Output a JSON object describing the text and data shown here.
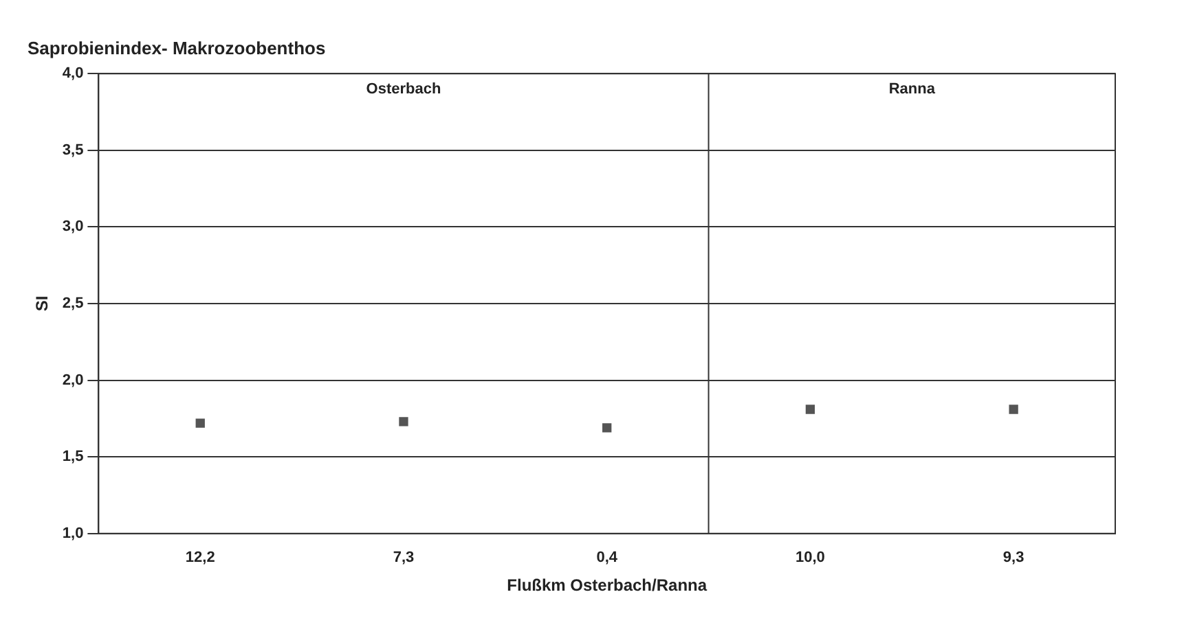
{
  "chart_data": {
    "type": "scatter",
    "title": "Saprobienindex- Makrozoobenthos",
    "xlabel": "Flußkm Osterbach/Ranna",
    "ylabel": "SI",
    "categories": [
      "12,2",
      "7,3",
      "0,4",
      "10,0",
      "9,3"
    ],
    "series": [
      {
        "color": "#555555",
        "values": [
          1.72,
          1.73,
          1.69,
          1.81,
          1.81
        ]
      }
    ],
    "ylim": [
      1,
      4
    ],
    "yticks": [
      {
        "value": 1,
        "label": "1,0"
      },
      {
        "value": 1.5,
        "label": "1,5"
      },
      {
        "value": 2,
        "label": "2,0"
      },
      {
        "value": 2.5,
        "label": "2,5"
      },
      {
        "value": 3,
        "label": "3,0"
      },
      {
        "value": 3.5,
        "label": "3,5"
      },
      {
        "value": 4,
        "label": "4,0"
      }
    ],
    "annotations": [
      "Osterbach",
      "Ranna"
    ],
    "grid": "y",
    "marker": "square",
    "legend": false
  }
}
